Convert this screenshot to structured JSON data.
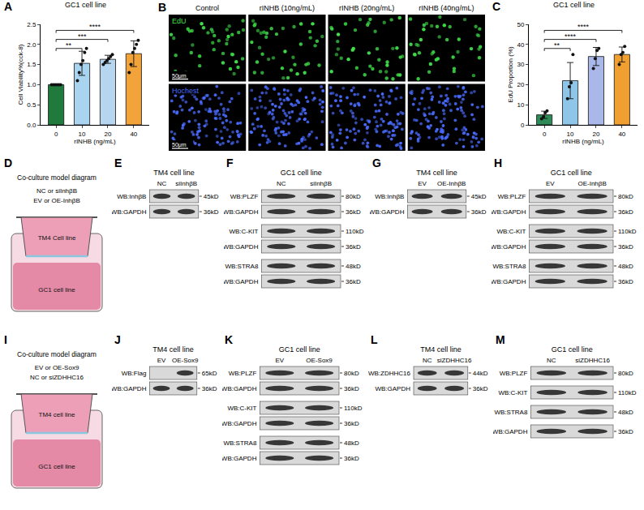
{
  "chart_data": [
    {
      "panel": "A",
      "type": "bar",
      "title": "GC1 cell line",
      "x_label": "rINHB (ng/mL)",
      "y_label": "Cell Viability%(cck-8)",
      "categories": [
        "0",
        "10",
        "20",
        "40"
      ],
      "values": [
        1.0,
        1.53,
        1.63,
        1.77
      ],
      "error": [
        0,
        0.3,
        0.1,
        0.32
      ],
      "points": [
        [
          1,
          1,
          1,
          1,
          1,
          1
        ],
        [
          1.1,
          1.3,
          1.5,
          1.6,
          1.8,
          1.9
        ],
        [
          1.5,
          1.55,
          1.6,
          1.65,
          1.7,
          1.75
        ],
        [
          1.3,
          1.5,
          1.8,
          1.9,
          2.0,
          2.1
        ]
      ],
      "colors": [
        "#1f7a3c",
        "#a9d4f0",
        "#b6d5ef",
        "#f2a33a"
      ],
      "ylim": [
        0,
        2.5
      ],
      "yticks": [
        {
          "value": 0,
          "label": "0.0"
        },
        {
          "value": 0.5,
          "label": "0.5"
        },
        {
          "value": 1,
          "label": "1.0"
        },
        {
          "value": 1.5,
          "label": "1.5"
        },
        {
          "value": 2,
          "label": "2.0"
        },
        {
          "value": 2.5,
          "label": "2.5"
        }
      ],
      "significance": [
        {
          "groups": [
            "0",
            "10"
          ],
          "label": "**"
        },
        {
          "groups": [
            "0",
            "20"
          ],
          "label": "***"
        },
        {
          "groups": [
            "0",
            "40"
          ],
          "label": "****"
        }
      ]
    },
    {
      "panel": "C",
      "type": "bar",
      "title": "GC1 cell line",
      "x_label": "rINHB (ng/mL)",
      "y_label": "EdU Proportion (%)",
      "categories": [
        "0",
        "10",
        "20",
        "40"
      ],
      "values": [
        5,
        22,
        34,
        35
      ],
      "error": [
        1.8,
        9,
        4.5,
        3.7
      ],
      "points": [
        [
          3,
          4,
          6,
          7
        ],
        [
          13,
          19,
          21,
          35
        ],
        [
          28,
          33,
          37,
          38
        ],
        [
          30,
          35,
          36,
          39
        ]
      ],
      "colors": [
        "#2e8b57",
        "#8fc6e8",
        "#a9b8e8",
        "#f0a030"
      ],
      "ylim": [
        0,
        50
      ],
      "yticks": [
        0,
        10,
        20,
        30,
        40,
        50
      ],
      "significance": [
        {
          "groups": [
            "0",
            "10"
          ],
          "label": "**"
        },
        {
          "groups": [
            "0",
            "20"
          ],
          "label": "****"
        },
        {
          "groups": [
            "0",
            "40"
          ],
          "label": "****"
        }
      ]
    }
  ],
  "images": {
    "letter": "B",
    "columns": [
      "Control",
      "rINHB (10ng/mL)",
      "rINHB (20ng/mL)",
      "rINHB (40ng/mL)"
    ],
    "rows": [
      {
        "label": "EdU",
        "color": "#3fe04a"
      },
      {
        "label": "Hochest",
        "color": "#4a6cff"
      }
    ],
    "scale_bar": "50μm"
  },
  "panel_rows": [
    [
      {
        "type": "diagram",
        "letter": "D",
        "title": "Co-culture model diagram",
        "treatments": [
          "NC or siInhβB",
          "EV or OE-InhβB"
        ],
        "upper": "TM4 Cell line",
        "lower": "GC1 cell line"
      },
      {
        "type": "blot",
        "letter": "E",
        "title": "TM4 cell line",
        "lanes": [
          "NC",
          "siInhβB"
        ],
        "groups": [
          [
            {
              "label": "WB:InhβB",
              "kd": "45kD"
            },
            {
              "label": "WB:GAPDH",
              "kd": "36kD"
            }
          ]
        ]
      },
      {
        "type": "blot",
        "letter": "F",
        "title": "GC1 cell line",
        "lanes": [
          "NC",
          "siInhβB"
        ],
        "groups": [
          [
            {
              "label": "WB:PLZF",
              "kd": "80kD"
            },
            {
              "label": "WB:GAPDH",
              "kd": "36kD"
            }
          ],
          [
            {
              "label": "WB:C-KIT",
              "kd": "110kD"
            },
            {
              "label": "WB:GAPDH",
              "kd": "36kD"
            }
          ],
          [
            {
              "label": "WB:STRA8",
              "kd": "48kD"
            },
            {
              "label": "WB:GAPDH",
              "kd": "36kD"
            }
          ]
        ]
      },
      {
        "type": "blot",
        "letter": "G",
        "title": "TM4 cell line",
        "lanes": [
          "EV",
          "OE-InhβB"
        ],
        "groups": [
          [
            {
              "label": "WB:InhβB",
              "kd": "45kD"
            },
            {
              "label": "WB:GAPDH",
              "kd": "36kD"
            }
          ]
        ]
      },
      {
        "type": "blot",
        "letter": "H",
        "title": "GC1 cell line",
        "lanes": [
          "EV",
          "OE-InhβB"
        ],
        "groups": [
          [
            {
              "label": "WB:PLZF",
              "kd": "80kD"
            },
            {
              "label": "WB:GAPDH",
              "kd": "36kD"
            }
          ],
          [
            {
              "label": "WB:C-KIT",
              "kd": "110kD"
            },
            {
              "label": "WB:GAPDH",
              "kd": "36kD"
            }
          ],
          [
            {
              "label": "WB:STRA8",
              "kd": "48kD"
            },
            {
              "label": "WB:GAPDH",
              "kd": "36kD"
            }
          ]
        ]
      }
    ],
    [
      {
        "type": "diagram",
        "letter": "I",
        "title": "Co-culture model diagram",
        "treatments": [
          "EV or OE-Sox9",
          "NC or siZDHHC16"
        ],
        "upper": "TM4 cell line",
        "lower": "GC1 cell line"
      },
      {
        "type": "blot",
        "letter": "J",
        "title": "TM4 cell line",
        "lanes": [
          "EV",
          "OE-Sox9"
        ],
        "groups": [
          [
            {
              "label": "WB:Flag",
              "kd": "65kD",
              "bands": [
                0,
                1
              ]
            },
            {
              "label": "WB:GAPDH",
              "kd": "36kD"
            }
          ]
        ]
      },
      {
        "type": "blot",
        "letter": "K",
        "title": "GC1 cell line",
        "lanes": [
          "EV",
          "OE-Sox9"
        ],
        "groups": [
          [
            {
              "label": "WB:PLZF",
              "kd": "80kD"
            },
            {
              "label": "WB:GAPDH",
              "kd": "36kD"
            }
          ],
          [
            {
              "label": "WB:C-KIT",
              "kd": "110kD"
            },
            {
              "label": "WB:GAPDH",
              "kd": "36kD"
            }
          ],
          [
            {
              "label": "WB:STRA8",
              "kd": "48kD"
            },
            {
              "label": "WB:GAPDH",
              "kd": "36kD"
            }
          ]
        ]
      },
      {
        "type": "blot",
        "letter": "L",
        "title": "TM4 cell line",
        "lanes": [
          "NC",
          "siZDHHC16"
        ],
        "groups": [
          [
            {
              "label": "WB:ZDHHC16",
              "kd": "44kD"
            },
            {
              "label": "WB:GAPDH",
              "kd": "36kD"
            }
          ]
        ]
      },
      {
        "type": "blot",
        "letter": "M",
        "title": "GC1 cell line",
        "lanes": [
          "NC",
          "siZDHHC16"
        ],
        "groups": [
          [
            {
              "label": "WB:PLZF",
              "kd": "80kD"
            }
          ],
          [
            {
              "label": "WB:C-KIT",
              "kd": "110kD"
            }
          ],
          [
            {
              "label": "WB:STRA8",
              "kd": "48kD"
            }
          ],
          [
            {
              "label": "WB:GAPDH",
              "kd": "36kD"
            }
          ]
        ]
      }
    ]
  ]
}
